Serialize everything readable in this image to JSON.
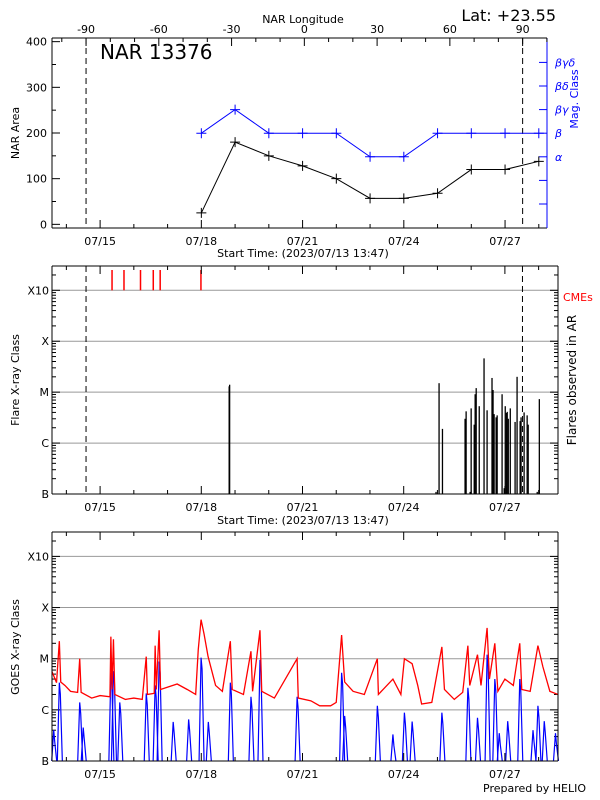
{
  "header": {
    "region_title": "NAR 13376",
    "latitude": "Lat: +23.55",
    "footer": "Prepared by HELIO"
  },
  "chart_data": [
    {
      "type": "line",
      "panel": "nar-area",
      "xlabel": "Start Time: (2023/07/13 13:47)",
      "ylabel": "NAR Area",
      "top_xlabel": "NAR Longitude",
      "right_ylabel": "Mag. Class",
      "xlim": [
        "07/13 13:47",
        "07/28 05:50"
      ],
      "ylim": [
        0,
        400
      ],
      "x_tick_labels": [
        "07/15",
        "07/18",
        "07/21",
        "07/24",
        "07/27"
      ],
      "y_tick_labels": [
        "0",
        "100",
        "200",
        "300",
        "400"
      ],
      "top_tick_labels": [
        "-90",
        "-60",
        "-30",
        "0",
        "30",
        "60",
        "90"
      ],
      "limb_markers": {
        "longitudes": [
          -90,
          90
        ],
        "times": [
          "07/14 14:00",
          "07/27 12:30"
        ],
        "style": "dashed"
      },
      "mag_class_levels": [
        "",
        "",
        "α",
        "β",
        "βγ",
        "βδ",
        "βγδ"
      ],
      "dates": [
        "07/18 00:00",
        "07/19 00:00",
        "07/20 00:00",
        "07/21 00:00",
        "07/22 00:00",
        "07/23 00:00",
        "07/24 00:00",
        "07/25 00:00",
        "07/26 00:00",
        "07/27 00:00",
        "07/28 00:00"
      ],
      "series": [
        {
          "values": [
            25,
            180,
            150,
            128,
            100,
            57,
            57,
            68,
            120,
            120,
            138
          ],
          "color": "#000000",
          "axis": "left"
        },
        {
          "values": [
            "β",
            "βγ",
            "β",
            "β",
            "β",
            "α",
            "α",
            "β",
            "β",
            "β",
            "β"
          ],
          "color": "#0000ff",
          "axis": "right"
        }
      ]
    },
    {
      "type": "bar",
      "panel": "flares",
      "xlabel": "Start Time: (2023/07/13 13:47)",
      "ylabel": "Flare X-ray Class",
      "right_ylabel": "Flares observed in AR",
      "cme_label": "CMEs",
      "xlim": [
        "07/13 13:47",
        "07/28 13:47"
      ],
      "ylim": [
        1e-07,
        0.003
      ],
      "y_scale": "log",
      "grid": true,
      "x_tick_labels": [
        "07/15",
        "07/18",
        "07/21",
        "07/24",
        "07/27"
      ],
      "y_levels": [
        {
          "label": "B",
          "flux": 1e-07
        },
        {
          "label": "C",
          "flux": 1e-06
        },
        {
          "label": "M",
          "flux": 1e-05
        },
        {
          "label": "X",
          "flux": 0.0001
        },
        {
          "label": "X10",
          "flux": 0.001
        }
      ],
      "cmes": [
        "07/15 08:30",
        "07/15 17:00",
        "07/16 04:45",
        "07/16 13:50",
        "07/16 18:45",
        "07/17 23:45"
      ],
      "cme_color": "#ff0000",
      "flares": [
        {
          "time": "07/18 19:50",
          "class": "M1.3"
        },
        {
          "time": "07/18 20:10",
          "class": "M1.4"
        },
        {
          "time": "07/24 23:00",
          "class": "B1.1"
        },
        {
          "time": "07/25 01:10",
          "class": "M1.5"
        },
        {
          "time": "07/25 03:35",
          "class": "C1.9"
        },
        {
          "time": "07/25 19:40",
          "class": "C3.0"
        },
        {
          "time": "07/25 20:25",
          "class": "C4.2"
        },
        {
          "time": "07/25 23:15",
          "class": "B1.1"
        },
        {
          "time": "07/26 00:00",
          "class": "C4.8"
        },
        {
          "time": "07/26 02:10",
          "class": "C2.3"
        },
        {
          "time": "07/26 02:50",
          "class": "C9.1"
        },
        {
          "time": "07/26 03:35",
          "class": "M1.2"
        },
        {
          "time": "07/26 05:45",
          "class": "C5.3"
        },
        {
          "time": "07/26 09:10",
          "class": "M4.6"
        },
        {
          "time": "07/26 11:20",
          "class": "C4.4"
        },
        {
          "time": "07/26 14:50",
          "class": "M1.9"
        },
        {
          "time": "07/26 15:35",
          "class": "M1.1"
        },
        {
          "time": "07/26 16:20",
          "class": "C3.7"
        },
        {
          "time": "07/26 17:45",
          "class": "C3.2"
        },
        {
          "time": "07/26 18:30",
          "class": "C3.5"
        },
        {
          "time": "07/26 22:00",
          "class": "C9.1"
        },
        {
          "time": "07/26 23:30",
          "class": "B1.3"
        },
        {
          "time": "07/27 00:15",
          "class": "C5.3"
        },
        {
          "time": "07/27 01:00",
          "class": "C3.9"
        },
        {
          "time": "07/27 01:40",
          "class": "C4.1"
        },
        {
          "time": "07/27 02:25",
          "class": "C3.0"
        },
        {
          "time": "07/27 03:50",
          "class": "C4.8"
        },
        {
          "time": "07/27 07:15",
          "class": "C2.6"
        },
        {
          "time": "07/27 08:40",
          "class": "M2.0"
        },
        {
          "time": "07/27 10:50",
          "class": "C2.7"
        },
        {
          "time": "07/27 11:30",
          "class": "C3.2"
        },
        {
          "time": "07/27 13:40",
          "class": "C4.0"
        },
        {
          "time": "07/27 15:50",
          "class": "C3.5"
        },
        {
          "time": "07/27 16:35",
          "class": "C2.3"
        },
        {
          "time": "07/27 23:00",
          "class": "B1.1"
        },
        {
          "time": "07/28 00:30",
          "class": "C7.3"
        }
      ]
    },
    {
      "type": "line",
      "panel": "goes",
      "ylabel": "GOES X-ray Class",
      "xlim": [
        "07/13 13:47",
        "07/28 13:47"
      ],
      "ylim": [
        1e-07,
        0.003
      ],
      "y_scale": "log",
      "grid": true,
      "x_tick_labels": [
        "07/15",
        "07/18",
        "07/21",
        "07/24",
        "07/27"
      ],
      "y_levels": [
        {
          "label": "B",
          "flux": 1e-07
        },
        {
          "label": "C",
          "flux": 1e-06
        },
        {
          "label": "M",
          "flux": 1e-05
        },
        {
          "label": "X",
          "flux": 0.0001
        },
        {
          "label": "X10",
          "flux": 0.001
        }
      ],
      "series": [
        {
          "color": "#ff0000",
          "points": [
            [
              "07/13 13:47",
              5.6e-06
            ],
            [
              "07/13 17:00",
              3.4e-06
            ],
            [
              "07/13 19:00",
              2.2e-05
            ],
            [
              "07/13 20:00",
              3.5e-06
            ],
            [
              "07/13 23:00",
              3e-06
            ],
            [
              "07/14 03:00",
              2.3e-06
            ],
            [
              "07/14 08:00",
              2.2e-06
            ],
            [
              "07/14 09:30",
              1e-05
            ],
            [
              "07/14 10:30",
              2.2e-06
            ],
            [
              "07/14 18:00",
              1.7e-06
            ],
            [
              "07/15 00:00",
              1.9e-06
            ],
            [
              "07/15 07:00",
              1.8e-06
            ],
            [
              "07/15 07:40",
              2.7e-05
            ],
            [
              "07/15 08:30",
              2.5e-06
            ],
            [
              "07/15 09:30",
              2.4e-05
            ],
            [
              "07/15 10:30",
              2e-06
            ],
            [
              "07/15 18:00",
              1.6e-06
            ],
            [
              "07/16 00:00",
              1.7e-06
            ],
            [
              "07/16 06:00",
              1.6e-06
            ],
            [
              "07/16 08:50",
              1.1e-05
            ],
            [
              "07/16 09:40",
              2e-06
            ],
            [
              "07/16 14:30",
              2.1e-06
            ],
            [
              "07/16 15:10",
              1.8e-05
            ],
            [
              "07/16 16:00",
              2.5e-06
            ],
            [
              "07/16 18:00",
              3.6e-05
            ],
            [
              "07/16 19:00",
              2.5e-06
            ],
            [
              "07/17 06:50",
              3.2e-06
            ],
            [
              "07/17 14:00",
              2.5e-06
            ],
            [
              "07/17 20:00",
              2e-06
            ],
            [
              "07/17 21:50",
              1.5e-05
            ],
            [
              "07/17 23:50",
              5.8e-05
            ],
            [
              "07/18 02:00",
              3e-05
            ],
            [
              "07/18 04:50",
              1.1e-05
            ],
            [
              "07/18 10:10",
              3e-06
            ],
            [
              "07/18 15:00",
              2.3e-06
            ],
            [
              "07/18 20:40",
              2.2e-05
            ],
            [
              "07/18 22:00",
              2.5e-06
            ],
            [
              "07/19 06:00",
              2e-06
            ],
            [
              "07/19 11:20",
              1.4e-05
            ],
            [
              "07/19 12:30",
              2.3e-06
            ],
            [
              "07/19 17:45",
              3.6e-05
            ],
            [
              "07/19 19:00",
              2.3e-06
            ],
            [
              "07/20 04:00",
              1.7e-06
            ],
            [
              "07/20 20:10",
              1e-05
            ],
            [
              "07/20 21:00",
              1.7e-06
            ],
            [
              "07/21 06:00",
              1.5e-06
            ],
            [
              "07/21 12:15",
              1.2e-06
            ],
            [
              "07/21 20:00",
              1.2e-06
            ],
            [
              "07/22 00:00",
              1.4e-06
            ],
            [
              "07/22 03:50",
              2.9e-05
            ],
            [
              "07/22 06:00",
              3.5e-06
            ],
            [
              "07/22 12:00",
              2.3e-06
            ],
            [
              "07/22 20:00",
              2e-06
            ],
            [
              "07/23 05:15",
              1e-05
            ],
            [
              "07/23 06:00",
              2e-06
            ],
            [
              "07/23 16:20",
              4e-06
            ],
            [
              "07/23 22:00",
              2e-06
            ],
            [
              "07/24 00:30",
              1e-05
            ],
            [
              "07/24 06:00",
              8e-06
            ],
            [
              "07/24 10:00",
              3e-06
            ],
            [
              "07/24 12:45",
              1.3e-06
            ],
            [
              "07/24 20:00",
              1.4e-06
            ],
            [
              "07/25 03:10",
              1.7e-05
            ],
            [
              "07/25 05:00",
              2.5e-06
            ],
            [
              "07/25 12:00",
              1.6e-06
            ],
            [
              "07/25 18:00",
              2.2e-06
            ],
            [
              "07/25 21:40",
              1.8e-05
            ],
            [
              "07/25 23:00",
              3e-06
            ],
            [
              "07/26 04:30",
              1.2e-05
            ],
            [
              "07/26 07:00",
              3e-06
            ],
            [
              "07/26 11:20",
              4e-05
            ],
            [
              "07/26 13:00",
              4e-06
            ],
            [
              "07/26 16:50",
              2e-05
            ],
            [
              "07/26 19:00",
              2.3e-06
            ],
            [
              "07/27 00:00",
              4e-06
            ],
            [
              "07/27 06:00",
              3e-06
            ],
            [
              "07/27 10:35",
              2e-05
            ],
            [
              "07/27 12:00",
              2.5e-06
            ],
            [
              "07/27 18:00",
              2.3e-06
            ],
            [
              "07/27 23:30",
              1.8e-05
            ],
            [
              "07/28 03:00",
              7e-06
            ],
            [
              "07/28 08:00",
              2.3e-06
            ],
            [
              "07/28 13:47",
              2e-06
            ]
          ]
        },
        {
          "color": "#0000ff",
          "peaks": [
            [
              "07/13 15:00",
              4e-07
            ],
            [
              "07/13 19:00",
              3.4e-06
            ],
            [
              "07/14 09:30",
              1.4e-06
            ],
            [
              "07/14 12:00",
              4.5e-07
            ],
            [
              "07/15 07:40",
              5.3e-06
            ],
            [
              "07/15 09:30",
              5.7e-06
            ],
            [
              "07/15 14:00",
              1.4e-06
            ],
            [
              "07/16 08:50",
              2.1e-06
            ],
            [
              "07/16 15:10",
              3e-06
            ],
            [
              "07/16 18:00",
              8.8e-06
            ],
            [
              "07/17 04:00",
              5.8e-07
            ],
            [
              "07/17 15:00",
              6.5e-07
            ],
            [
              "07/17 23:50",
              1.05e-05
            ],
            [
              "07/18 05:00",
              5.8e-07
            ],
            [
              "07/18 20:40",
              3.4e-06
            ],
            [
              "07/19 11:20",
              1.8e-06
            ],
            [
              "07/19 17:45",
              9.5e-06
            ],
            [
              "07/20 20:10",
              1.8e-06
            ],
            [
              "07/22 03:50",
              5.3e-06
            ],
            [
              "07/22 06:00",
              7.6e-07
            ],
            [
              "07/23 05:15",
              1.2e-06
            ],
            [
              "07/23 16:20",
              3.3e-07
            ],
            [
              "07/24 00:30",
              8.8e-07
            ],
            [
              "07/24 06:00",
              5.9e-07
            ],
            [
              "07/25 03:10",
              8.8e-07
            ],
            [
              "07/25 21:40",
              2.7e-06
            ],
            [
              "07/26 04:30",
              7e-07
            ],
            [
              "07/26 11:20",
              1.2e-05
            ],
            [
              "07/26 16:50",
              4e-06
            ],
            [
              "07/26 20:00",
              3.5e-07
            ],
            [
              "07/27 02:00",
              6e-07
            ],
            [
              "07/27 10:35",
              4e-06
            ],
            [
              "07/27 20:00",
              4e-07
            ],
            [
              "07/27 23:30",
              1.2e-06
            ],
            [
              "07/28 04:00",
              6e-07
            ],
            [
              "07/28 12:00",
              3.5e-07
            ]
          ]
        }
      ]
    }
  ]
}
